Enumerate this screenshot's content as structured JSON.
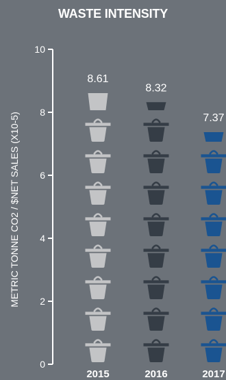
{
  "chart_data": {
    "type": "bar",
    "title": "WASTE INTENSITY",
    "xlabel": "",
    "ylabel": "METRIC TONNE CO2 / $NET SALES (X10-5)",
    "categories": [
      "2015",
      "2016",
      "2017"
    ],
    "values": [
      8.61,
      8.32,
      7.37
    ],
    "value_labels": [
      "8.61",
      "8.32",
      "7.37"
    ],
    "ylim": [
      0,
      10
    ],
    "yticks": [
      "0",
      "2",
      "4",
      "6",
      "8",
      "10"
    ],
    "colors": [
      "#c3c4c6",
      "#353d46",
      "#1a5491"
    ],
    "icon": "trash-can-icon",
    "grid": false
  }
}
